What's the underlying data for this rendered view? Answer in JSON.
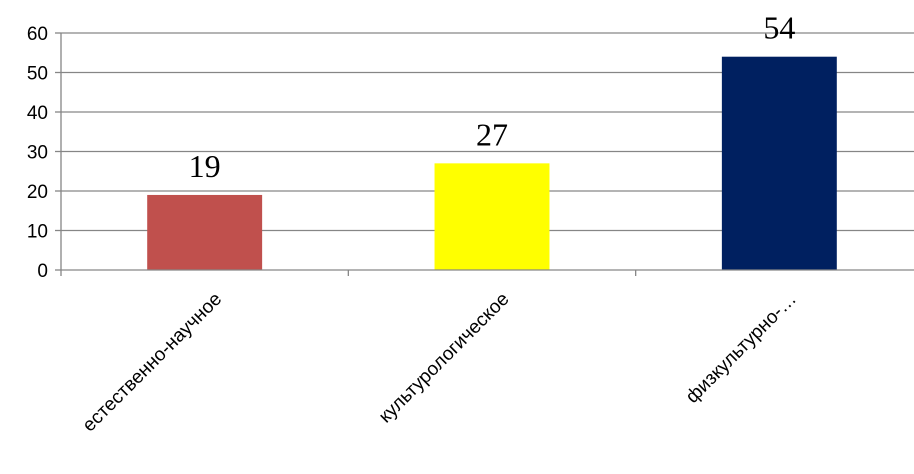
{
  "chart_data": {
    "type": "bar",
    "title": "",
    "xlabel": "",
    "ylabel": "",
    "categories": [
      "естественно-научное",
      "культурологическое",
      "физкультурно-…"
    ],
    "values": [
      19,
      27,
      54
    ],
    "bar_colors": [
      "#C0504D",
      "#FFFF00",
      "#002060"
    ],
    "ylim": [
      0,
      60
    ],
    "yticks": [
      0,
      10,
      20,
      30,
      40,
      50,
      60
    ],
    "data_labels": [
      "19",
      "27",
      "54"
    ],
    "grid": true,
    "legend": "none"
  }
}
